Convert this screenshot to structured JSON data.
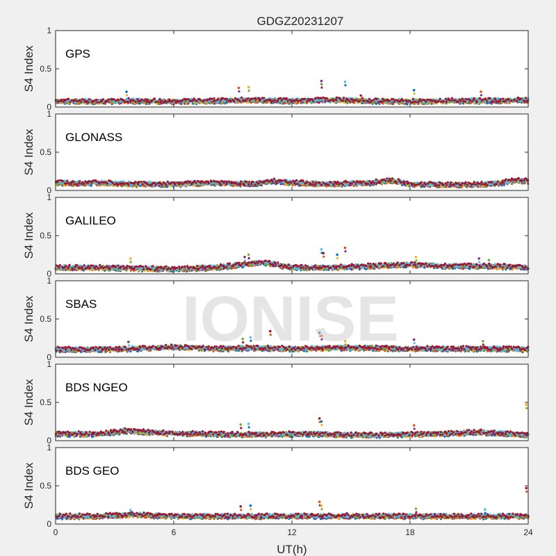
{
  "chart_data": {
    "type": "scatter",
    "title": "GDGZ20231207",
    "watermark": "IONISE",
    "xlabel": "UT(h)",
    "ylabel": "S4 Index",
    "xlim": [
      0,
      24
    ],
    "ylim": [
      0,
      1
    ],
    "xticks": [
      "0",
      "6",
      "12",
      "18",
      "24"
    ],
    "yticks": [
      "0",
      "0.5",
      "1"
    ],
    "grid": false,
    "series_colors": [
      "#0072BD",
      "#D95319",
      "#EDB120",
      "#7E2F8E",
      "#77AC30",
      "#4DBEEE",
      "#A2142F"
    ],
    "panels": [
      {
        "name": "GPS",
        "baseline": [
          [
            0,
            0.08
          ],
          [
            2,
            0.07
          ],
          [
            4,
            0.08
          ],
          [
            6,
            0.07
          ],
          [
            8,
            0.08
          ],
          [
            10,
            0.09
          ],
          [
            12,
            0.08
          ],
          [
            14,
            0.09
          ],
          [
            16,
            0.08
          ],
          [
            18,
            0.07
          ],
          [
            20,
            0.08
          ],
          [
            22,
            0.08
          ],
          [
            24,
            0.09
          ]
        ],
        "spikes": [
          [
            3.6,
            0.2
          ],
          [
            9.3,
            0.25
          ],
          [
            9.8,
            0.26
          ],
          [
            13.5,
            0.34
          ],
          [
            13.5,
            0.3
          ],
          [
            14.7,
            0.33
          ],
          [
            15.5,
            0.15
          ],
          [
            18.2,
            0.22
          ],
          [
            21.6,
            0.2
          ]
        ]
      },
      {
        "name": "GLONASS",
        "baseline": [
          [
            0,
            0.1
          ],
          [
            1,
            0.09
          ],
          [
            2,
            0.1
          ],
          [
            3,
            0.09
          ],
          [
            4,
            0.08
          ],
          [
            6,
            0.08
          ],
          [
            8,
            0.1
          ],
          [
            10,
            0.08
          ],
          [
            11,
            0.12
          ],
          [
            12,
            0.1
          ],
          [
            14,
            0.08
          ],
          [
            16,
            0.1
          ],
          [
            17,
            0.13
          ],
          [
            18,
            0.08
          ],
          [
            20,
            0.07
          ],
          [
            22,
            0.08
          ],
          [
            23.5,
            0.13
          ],
          [
            24,
            0.12
          ]
        ],
        "spikes": []
      },
      {
        "name": "GALILEO",
        "baseline": [
          [
            0,
            0.08
          ],
          [
            2,
            0.08
          ],
          [
            4,
            0.07
          ],
          [
            6,
            0.06
          ],
          [
            8,
            0.08
          ],
          [
            9.5,
            0.12
          ],
          [
            10.5,
            0.15
          ],
          [
            12,
            0.08
          ],
          [
            14,
            0.08
          ],
          [
            16,
            0.1
          ],
          [
            18,
            0.12
          ],
          [
            20,
            0.1
          ],
          [
            22,
            0.1
          ],
          [
            24,
            0.08
          ]
        ],
        "spikes": [
          [
            3.8,
            0.2
          ],
          [
            9.6,
            0.22
          ],
          [
            9.8,
            0.25
          ],
          [
            13.5,
            0.32
          ],
          [
            13.6,
            0.27
          ],
          [
            14.3,
            0.25
          ],
          [
            14.7,
            0.34
          ],
          [
            18.3,
            0.22
          ],
          [
            21.5,
            0.2
          ],
          [
            22,
            0.18
          ]
        ]
      },
      {
        "name": "SBAS",
        "baseline": [
          [
            0,
            0.1
          ],
          [
            2,
            0.1
          ],
          [
            4,
            0.11
          ],
          [
            6,
            0.13
          ],
          [
            8,
            0.11
          ],
          [
            10,
            0.12
          ],
          [
            12,
            0.11
          ],
          [
            14,
            0.12
          ],
          [
            16,
            0.12
          ],
          [
            18,
            0.11
          ],
          [
            20,
            0.11
          ],
          [
            22,
            0.11
          ],
          [
            24,
            0.1
          ]
        ],
        "spikes": [
          [
            3.7,
            0.2
          ],
          [
            9.5,
            0.24
          ],
          [
            9.9,
            0.26
          ],
          [
            10.9,
            0.34
          ],
          [
            13.4,
            0.32
          ],
          [
            13.5,
            0.28
          ],
          [
            14.7,
            0.21
          ],
          [
            18.2,
            0.23
          ],
          [
            21.7,
            0.21
          ]
        ]
      },
      {
        "name": "BDS NGEO",
        "baseline": [
          [
            0,
            0.09
          ],
          [
            2,
            0.08
          ],
          [
            3.7,
            0.13
          ],
          [
            5,
            0.1
          ],
          [
            7,
            0.09
          ],
          [
            9,
            0.08
          ],
          [
            11,
            0.08
          ],
          [
            13,
            0.09
          ],
          [
            14,
            0.08
          ],
          [
            16,
            0.07
          ],
          [
            18,
            0.08
          ],
          [
            20,
            0.09
          ],
          [
            21.5,
            0.11
          ],
          [
            24,
            0.07
          ]
        ],
        "spikes": [
          [
            9.4,
            0.21
          ],
          [
            9.8,
            0.22
          ],
          [
            13.4,
            0.29
          ],
          [
            13.5,
            0.25
          ],
          [
            18.2,
            0.2
          ],
          [
            23.9,
            0.47
          ]
        ]
      },
      {
        "name": "BDS GEO",
        "baseline": [
          [
            0,
            0.1
          ],
          [
            2,
            0.1
          ],
          [
            4,
            0.12
          ],
          [
            6,
            0.1
          ],
          [
            8,
            0.1
          ],
          [
            10,
            0.1
          ],
          [
            12,
            0.1
          ],
          [
            14,
            0.1
          ],
          [
            16,
            0.1
          ],
          [
            18,
            0.1
          ],
          [
            20,
            0.1
          ],
          [
            22,
            0.1
          ],
          [
            24,
            0.1
          ]
        ],
        "spikes": [
          [
            3.8,
            0.18
          ],
          [
            9.4,
            0.23
          ],
          [
            9.9,
            0.24
          ],
          [
            13.4,
            0.29
          ],
          [
            13.5,
            0.24
          ],
          [
            14.8,
            0.14
          ],
          [
            18.3,
            0.2
          ],
          [
            21.8,
            0.19
          ],
          [
            23.9,
            0.47
          ]
        ]
      }
    ]
  }
}
